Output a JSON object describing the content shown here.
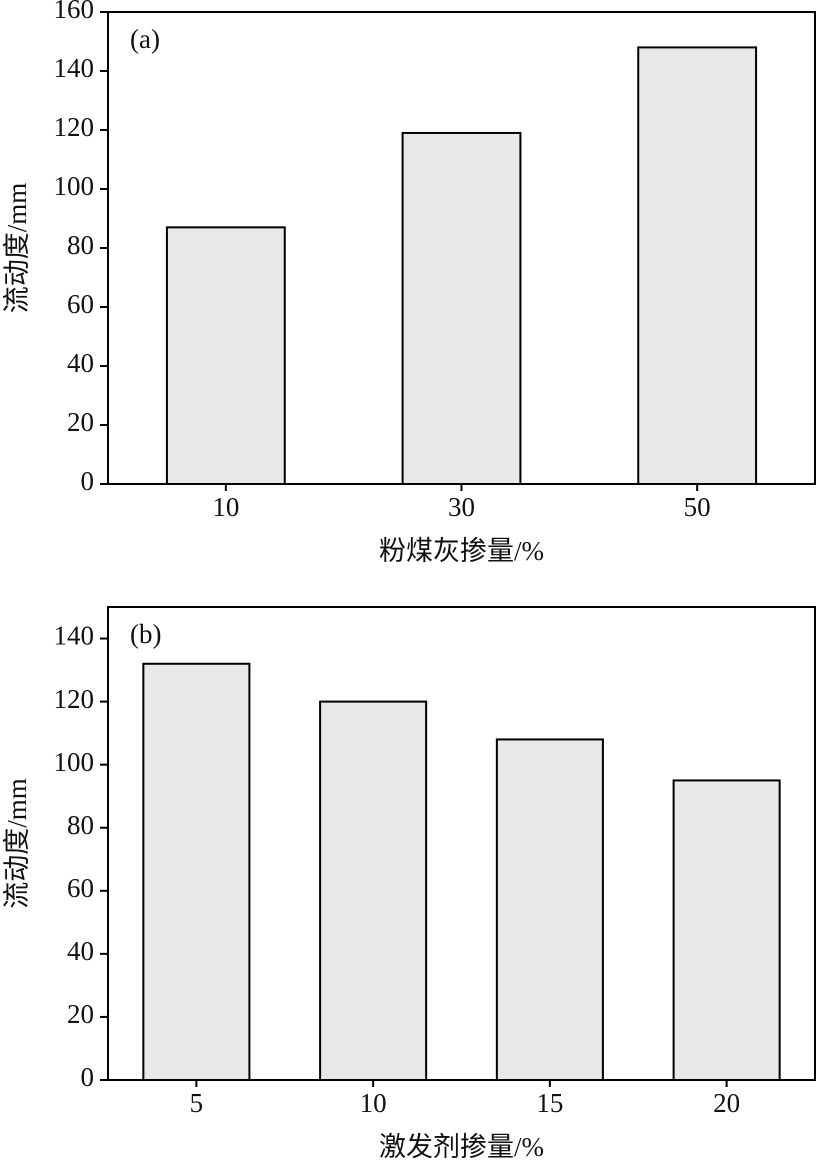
{
  "chart_data": [
    {
      "type": "bar",
      "panel_label": "(a)",
      "x_label": "粉煤灰掺量/%",
      "y_label": "流动度/mm",
      "categories": [
        "10",
        "30",
        "50"
      ],
      "values": [
        87,
        119,
        148
      ],
      "color": "#e8e8e8",
      "ylim": [
        0,
        160
      ],
      "yticks": [
        0,
        20,
        40,
        60,
        80,
        100,
        120,
        140,
        160
      ]
    },
    {
      "type": "bar",
      "panel_label": "(b)",
      "x_label": "激发剂掺量/%",
      "y_label": "流动度/mm",
      "categories": [
        "5",
        "10",
        "15",
        "20"
      ],
      "values": [
        132,
        120,
        108,
        95
      ],
      "color": "#e8e8e8",
      "ylim": [
        0,
        150
      ],
      "yticks": [
        0,
        20,
        40,
        60,
        80,
        100,
        120,
        140
      ]
    }
  ]
}
